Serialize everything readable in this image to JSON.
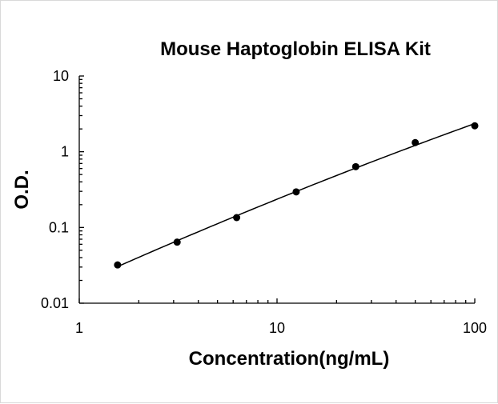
{
  "chart_data": {
    "type": "scatter",
    "title": "Mouse Haptoglobin ELISA Kit",
    "xlabel": "Concentration(ng/mL)",
    "ylabel": "O.D.",
    "xscale": "log",
    "yscale": "log",
    "xlim": [
      1,
      100
    ],
    "ylim": [
      0.01,
      10
    ],
    "x_tick_labels": [
      "1",
      "10",
      "100"
    ],
    "y_tick_labels": [
      "0.01",
      "0.1",
      "1",
      "10"
    ],
    "grid": false,
    "legend": "none",
    "series": [
      {
        "x": [
          1.5625,
          3.125,
          6.25,
          12.5,
          25,
          50,
          100
        ],
        "y": [
          0.032,
          0.064,
          0.135,
          0.295,
          0.635,
          1.32,
          2.2
        ]
      }
    ],
    "fit_curve": true
  }
}
